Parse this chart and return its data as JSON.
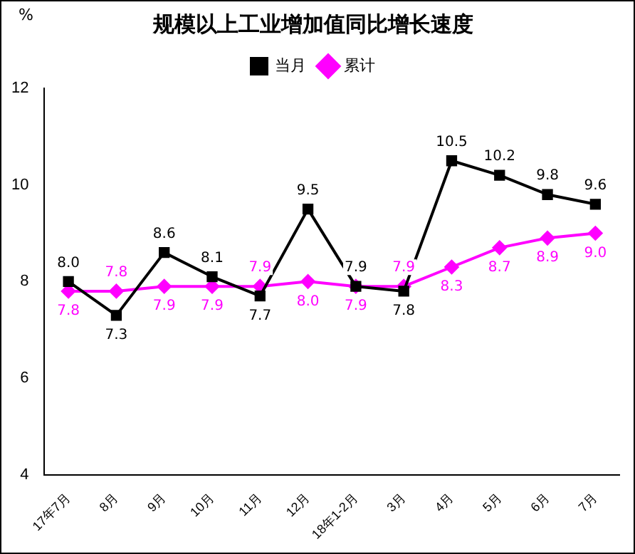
{
  "chart_data": {
    "type": "line",
    "title": "规模以上工业增加值同比增长速度",
    "ylabel": "%",
    "categories": [
      "17年7月",
      "8月",
      "9月",
      "10月",
      "11月",
      "12月",
      "18年1-2月",
      "3月",
      "4月",
      "5月",
      "6月",
      "7月"
    ],
    "series": [
      {
        "name": "当月",
        "color": "#000000",
        "marker": "square",
        "values": [
          8.0,
          7.3,
          8.6,
          8.1,
          7.7,
          9.5,
          7.9,
          7.8,
          10.5,
          10.2,
          9.8,
          9.6
        ],
        "value_labels": [
          "8.0",
          "7.3",
          "8.6",
          "8.1",
          "7.7",
          "9.5",
          "7.9",
          "7.8",
          "10.5",
          "10.2",
          "9.8",
          "9.6"
        ]
      },
      {
        "name": "累计",
        "color": "#ff00ff",
        "marker": "diamond",
        "values": [
          7.8,
          7.8,
          7.9,
          7.9,
          7.9,
          8.0,
          7.9,
          7.9,
          8.3,
          8.7,
          8.9,
          9.0
        ],
        "value_labels": [
          "7.8",
          "7.8",
          "7.9",
          "7.9",
          "7.9",
          "8.0",
          "7.9",
          "7.9",
          "8.3",
          "8.7",
          "8.9",
          "9.0"
        ]
      }
    ],
    "ylim": [
      4,
      12
    ],
    "yticks": [
      4,
      6,
      8,
      10,
      12
    ],
    "grid": false,
    "legend": "top",
    "line_style": "solid"
  }
}
